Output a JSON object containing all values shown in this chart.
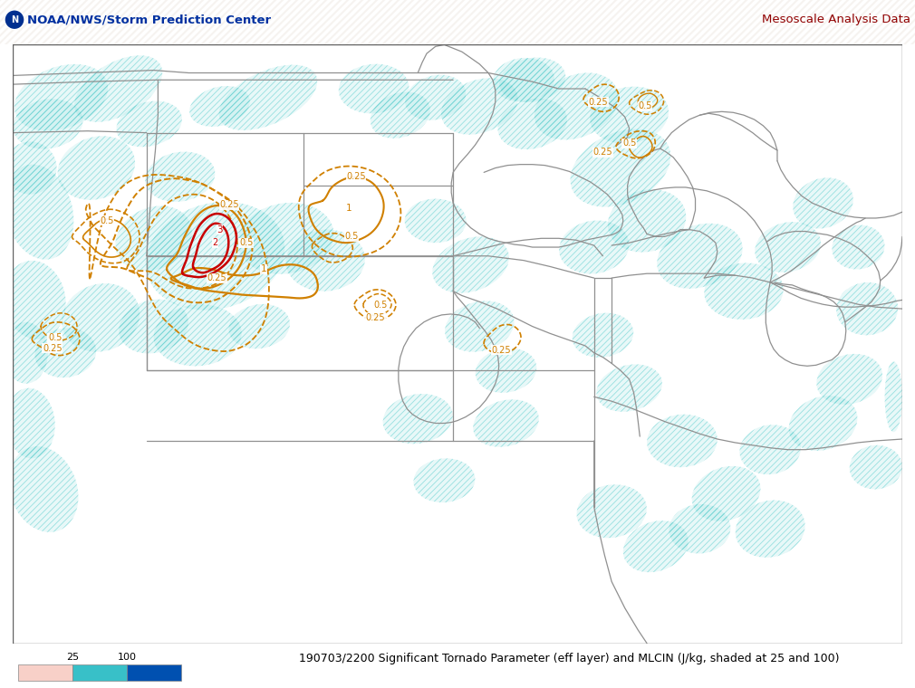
{
  "title_left": "NOAA/NWS/Storm Prediction Center",
  "title_right": "Mesoscale Analysis Data",
  "bottom_label": "190703/2200 Significant Tornado Parameter (eff layer) and MLCIN (J/kg, shaded at 25 and 100)",
  "colorbar_labels": [
    "25",
    "100"
  ],
  "map_bg": "#ffffff",
  "fig_bg": "#ffffff",
  "state_line_color": "#909090",
  "hatch_cyan": "#48c8c8",
  "contour_orange": "#d08000",
  "contour_red": "#c80000",
  "fig_width": 10.1,
  "fig_height": 7.6,
  "dpi": 100,
  "header_bg": "#f0ede8",
  "header_stripe_color": "#d8c8b8",
  "noaa_blue": "#0030a0",
  "mes_red": "#900000"
}
